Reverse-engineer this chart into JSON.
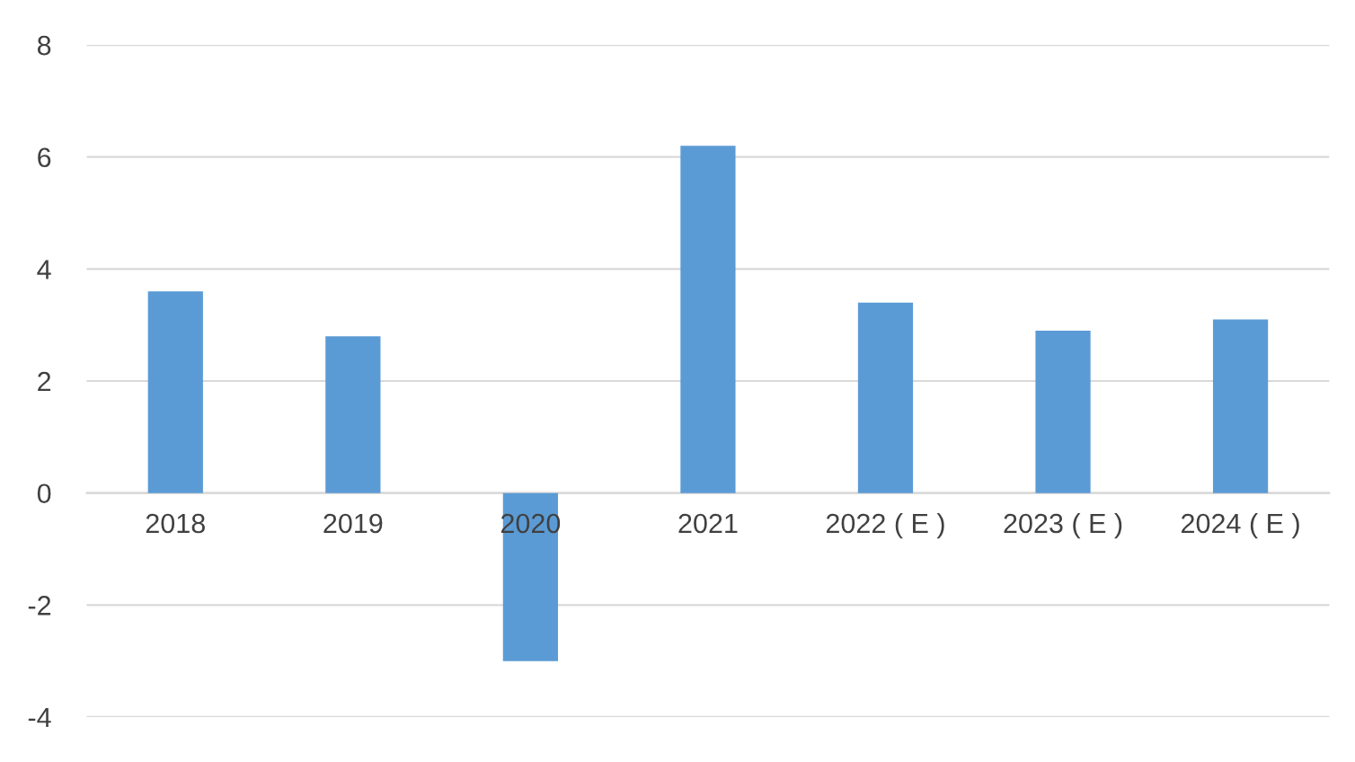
{
  "chart_data": {
    "type": "bar",
    "categories": [
      "2018",
      "2019",
      "2020",
      "2021",
      "2022 ( E )",
      "2023 ( E )",
      "2024 ( E )"
    ],
    "values": [
      3.6,
      2.8,
      -3.0,
      6.2,
      3.4,
      2.9,
      3.1
    ],
    "color": "#5b9bd5",
    "ylim": [
      -4,
      8
    ],
    "yticks": [
      -4,
      -2,
      0,
      2,
      4,
      6,
      8
    ],
    "grid": "y",
    "legend": false
  }
}
